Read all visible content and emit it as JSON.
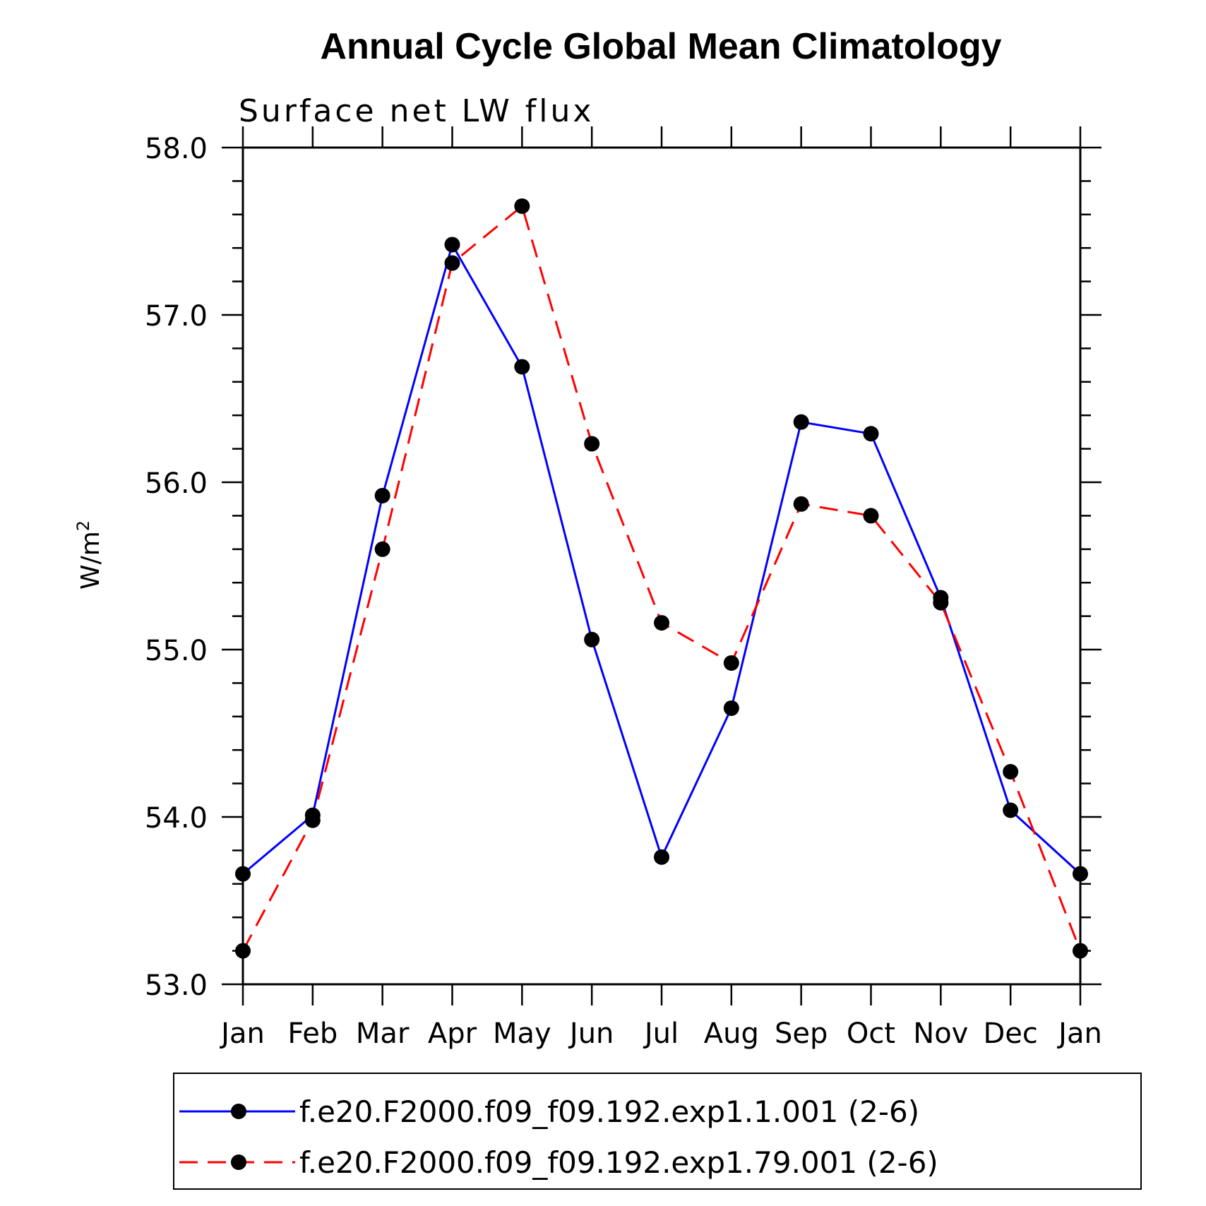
{
  "chart_data": {
    "type": "line",
    "title": "Annual Cycle Global Mean Climatology",
    "subtitle": "Surface net LW flux",
    "ylabel": "W/m",
    "ylabel_sup": "2",
    "xlabel": "",
    "ylim": [
      53.0,
      58.0
    ],
    "y_ticks": [
      "53.0",
      "54.0",
      "55.0",
      "56.0",
      "57.0",
      "58.0"
    ],
    "categories": [
      "Jan",
      "Feb",
      "Mar",
      "Apr",
      "May",
      "Jun",
      "Jul",
      "Aug",
      "Sep",
      "Oct",
      "Nov",
      "Dec",
      "Jan"
    ],
    "series": [
      {
        "name": "f.e20.F2000.f09_f09.192.exp1.1.001 (2-6)",
        "color": "#0000ff",
        "dash": "solid",
        "values": [
          53.66,
          54.01,
          55.92,
          57.42,
          56.69,
          55.06,
          53.76,
          54.65,
          56.36,
          56.29,
          55.31,
          54.04,
          53.66
        ]
      },
      {
        "name": "f.e20.F2000.f09_f09.192.exp1.79.001 (2-6)",
        "color": "#ff0000",
        "dash": "dashed",
        "values": [
          53.2,
          53.98,
          55.6,
          57.31,
          57.65,
          56.23,
          55.16,
          54.92,
          55.87,
          55.8,
          55.28,
          54.27,
          53.2
        ]
      }
    ],
    "marker_color": "#000000",
    "legend_position": "bottom",
    "grid": false
  }
}
